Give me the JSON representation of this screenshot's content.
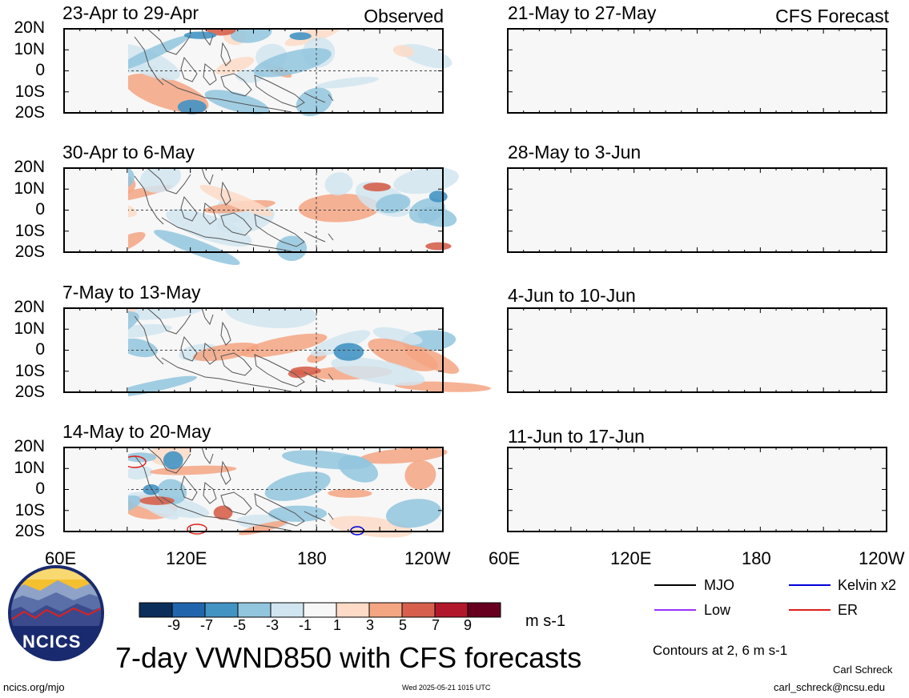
{
  "header": {
    "observed_label": "Observed",
    "forecast_label": "CFS Forecast"
  },
  "panels": {
    "left": [
      {
        "period": "23-Apr to 29-Apr"
      },
      {
        "period": "30-Apr to 6-May"
      },
      {
        "period": "7-May to 13-May"
      },
      {
        "period": "14-May to 20-May"
      }
    ],
    "right": [
      {
        "period": "21-May to 27-May"
      },
      {
        "period": "28-May to 3-Jun"
      },
      {
        "period": "4-Jun to 10-Jun"
      },
      {
        "period": "11-Jun to 17-Jun"
      }
    ]
  },
  "axes": {
    "lat_ticks": [
      "20N",
      "10N",
      "0",
      "10S",
      "20S"
    ],
    "lon_ticks": [
      "60E",
      "120E",
      "180",
      "120W"
    ]
  },
  "colorbar": {
    "labels": [
      "-9",
      "-7",
      "-5",
      "-3",
      "-1",
      "1",
      "3",
      "5",
      "7",
      "9"
    ],
    "units": "m s-1",
    "colors": [
      "#0b2f5a",
      "#2166ac",
      "#4393c3",
      "#92c5de",
      "#d1e5f0",
      "#f7f7f7",
      "#fddbc7",
      "#f4a582",
      "#d6604d",
      "#b2182b",
      "#67001f"
    ]
  },
  "legend": {
    "items": [
      {
        "label": "MJO",
        "color": "#000000"
      },
      {
        "label": "Kelvin x2",
        "color": "#0000dd"
      },
      {
        "label": "Low",
        "color": "#9b30ff"
      },
      {
        "label": "ER",
        "color": "#e0201b"
      }
    ],
    "contours_note": "Contours at 2, 6 m s-1"
  },
  "footer": {
    "title": "7-day VWND850 with CFS forecasts",
    "logo_text": "NCICS",
    "url": "ncics.org/mjo",
    "timestamp": "Wed 2025-05-21 1015 UTC",
    "author": "Carl Schreck",
    "email": "carl_schreck@ncsu.edu"
  }
}
